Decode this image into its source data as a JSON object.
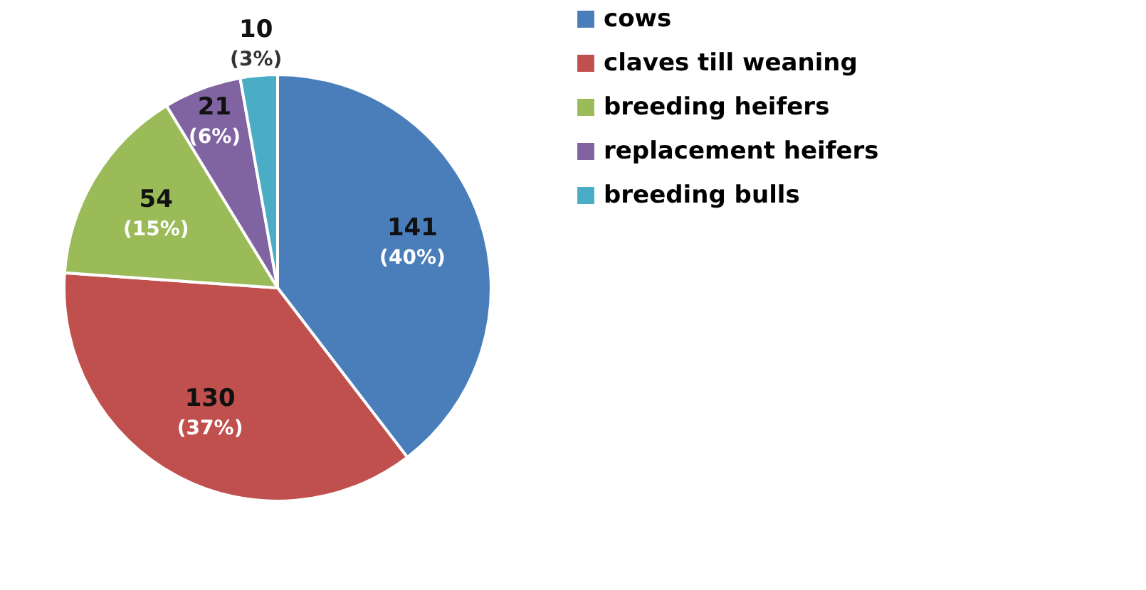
{
  "chart_data": {
    "type": "pie",
    "categories": [
      "cows",
      "claves till weaning",
      "breeding heifers",
      "replacement heifers",
      "breeding bulls"
    ],
    "values": [
      141,
      130,
      54,
      21,
      10
    ],
    "colors": [
      "#4a7ebb",
      "#c0504d",
      "#9bbb59",
      "#8064a2",
      "#4bacc6"
    ],
    "data_labels": true,
    "annotations": [
      "(40%)",
      "(37%)",
      "(15%)",
      "(6%)",
      "(3%)"
    ],
    "legend": "right"
  }
}
